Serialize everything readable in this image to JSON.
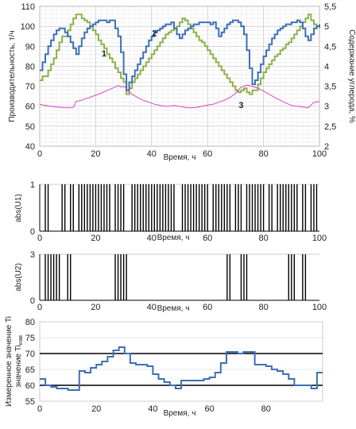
{
  "chart_data": [
    {
      "type": "line",
      "xlabel": "Время, ч",
      "ylabel": "Производительность, т/ч",
      "y2label": "Содержание углерода, %",
      "xlim": [
        0,
        100
      ],
      "ylim": [
        40,
        110
      ],
      "y2lim": [
        2,
        5.5
      ],
      "xticks": [
        "0",
        "20",
        "40",
        "60",
        "80",
        "100"
      ],
      "yticks": [
        "40",
        "50",
        "60",
        "70",
        "80",
        "90",
        "100",
        "110"
      ],
      "y2ticks": [
        "2",
        "2,5",
        "3",
        "3,5",
        "4",
        "4,5",
        "5",
        "5,5"
      ],
      "grid": true,
      "series": [
        {
          "name": "1",
          "axis": "left",
          "color": "#8db04a",
          "x": [
            0,
            1,
            3,
            4,
            5,
            6,
            7,
            8,
            10,
            11,
            12,
            13,
            15,
            16,
            17,
            18,
            19,
            20,
            21,
            22,
            23,
            24,
            25,
            26,
            27,
            28,
            29,
            30,
            31,
            32,
            33,
            34,
            35,
            36,
            37,
            38,
            39,
            40,
            41,
            42,
            43,
            44,
            45,
            46,
            47,
            48,
            49,
            50,
            51,
            52,
            53,
            54,
            55,
            56,
            57,
            58,
            59,
            60,
            61,
            62,
            63,
            64,
            65,
            66,
            67,
            68,
            69,
            70,
            71,
            72,
            73,
            74,
            75,
            76,
            78,
            79,
            80,
            81,
            82,
            83,
            84,
            85,
            86,
            87,
            88,
            89,
            90,
            91,
            92,
            93,
            94,
            95,
            96,
            97,
            98,
            99,
            100
          ],
          "y": [
            73,
            75,
            78,
            81,
            84,
            88,
            92,
            95,
            98,
            101,
            104,
            106,
            104,
            103,
            102,
            100,
            98,
            96,
            93,
            91,
            89,
            86,
            84,
            82,
            79,
            77,
            74,
            72,
            66,
            69,
            72,
            74,
            76,
            78,
            80,
            82,
            84,
            86,
            88,
            90,
            92,
            94,
            96,
            97,
            98,
            99,
            100,
            102,
            104,
            103,
            101,
            99,
            97,
            95,
            93,
            92,
            90,
            88,
            86,
            84,
            82,
            80,
            78,
            76,
            74,
            72,
            70,
            68,
            67,
            68,
            69,
            67,
            66,
            68,
            71,
            74,
            77,
            79,
            81,
            83,
            85,
            86,
            88,
            89,
            91,
            92,
            94,
            96,
            98,
            100,
            102,
            104,
            106,
            103,
            101,
            100,
            99
          ]
        },
        {
          "name": "2",
          "axis": "left",
          "color": "#3d6fb6",
          "x": [
            0,
            1,
            2,
            3,
            4,
            5,
            6,
            7,
            8,
            9,
            10,
            11,
            12,
            13,
            14,
            15,
            16,
            17,
            18,
            19,
            20,
            21,
            22,
            23,
            24,
            25,
            26,
            27,
            28,
            29,
            30,
            31,
            32,
            33,
            34,
            35,
            36,
            37,
            38,
            39,
            40,
            41,
            42,
            43,
            44,
            45,
            46,
            47,
            48,
            49,
            50,
            51,
            52,
            53,
            54,
            55,
            56,
            57,
            58,
            59,
            60,
            61,
            62,
            63,
            64,
            65,
            66,
            67,
            68,
            69,
            70,
            71,
            72,
            73,
            74,
            75,
            76,
            77,
            78,
            79,
            80,
            81,
            82,
            83,
            84,
            85,
            86,
            87,
            88,
            89,
            90,
            91,
            92,
            93,
            94,
            95,
            96,
            97,
            98,
            99,
            100
          ],
          "y": [
            78,
            82,
            86,
            90,
            93,
            96,
            98,
            99,
            99,
            97,
            95,
            92,
            89,
            86,
            90,
            94,
            97,
            99,
            100,
            101,
            102,
            103,
            103,
            103,
            102,
            103,
            103,
            99,
            95,
            87,
            76,
            68,
            72,
            75,
            78,
            81,
            84,
            87,
            90,
            93,
            95,
            97,
            98,
            99,
            100,
            101,
            101,
            102,
            99,
            96,
            94,
            96,
            98,
            99,
            100,
            101,
            101,
            102,
            102,
            102,
            102,
            101,
            102,
            99,
            95,
            97,
            99,
            101,
            102,
            103,
            103,
            102,
            100,
            96,
            88,
            79,
            71,
            73,
            77,
            81,
            85,
            88,
            91,
            94,
            96,
            98,
            99,
            100,
            101,
            101,
            102,
            102,
            103,
            102,
            99,
            95,
            93,
            96,
            99,
            100,
            101
          ]
        },
        {
          "name": "3",
          "axis": "right",
          "color": "#d645c6",
          "x": [
            0,
            2,
            4,
            6,
            8,
            10,
            12,
            13,
            15,
            17,
            19,
            21,
            23,
            25,
            27,
            28,
            29,
            30,
            31,
            32,
            33,
            35,
            37,
            39,
            41,
            43,
            45,
            46,
            48,
            50,
            52,
            54,
            56,
            58,
            60,
            62,
            64,
            66,
            68,
            70,
            72,
            74,
            76,
            78,
            80,
            82,
            84,
            86,
            88,
            90,
            92,
            94,
            96,
            98,
            100
          ],
          "y": [
            3.05,
            3.02,
            3.0,
            2.98,
            2.97,
            2.96,
            2.97,
            3.12,
            3.15,
            3.2,
            3.25,
            3.3,
            3.36,
            3.42,
            3.48,
            3.52,
            3.48,
            3.5,
            3.44,
            3.36,
            3.3,
            3.22,
            3.15,
            3.1,
            3.05,
            3.02,
            3.0,
            3.0,
            3.02,
            3.0,
            2.97,
            2.96,
            2.97,
            3.0,
            3.03,
            3.05,
            3.1,
            3.15,
            3.22,
            3.32,
            3.48,
            3.53,
            3.5,
            3.45,
            3.38,
            3.3,
            3.22,
            3.15,
            3.08,
            3.02,
            3.0,
            2.98,
            2.96,
            3.1,
            3.12
          ]
        }
      ],
      "annotations": [
        {
          "text": "1",
          "x": 23,
          "y": 85
        },
        {
          "text": "2",
          "x": 41,
          "y": 95
        },
        {
          "text": "3",
          "x": 72,
          "y": 59
        }
      ]
    },
    {
      "type": "line",
      "xlabel": "Время, ч",
      "ylabel": "abs(U1)",
      "xlim": [
        0,
        100
      ],
      "ylim": [
        0,
        1
      ],
      "xticks": [
        "0",
        "20",
        "40",
        "60",
        "80",
        "100"
      ],
      "yticks": [
        "0",
        "1"
      ],
      "pulse_x": [
        2,
        3,
        8,
        9,
        11,
        12,
        14,
        15,
        16,
        17,
        18,
        19,
        20,
        21,
        22,
        23,
        24,
        25,
        27,
        28,
        29,
        30,
        33,
        34,
        35,
        36,
        37,
        38,
        39,
        40,
        41,
        42,
        43,
        44,
        45,
        46,
        47,
        48,
        51,
        52,
        53,
        54,
        55,
        56,
        57,
        58,
        59,
        60,
        62,
        63,
        64,
        65,
        66,
        67,
        68,
        70,
        71,
        72,
        74,
        75,
        76,
        77,
        78,
        79,
        80,
        82,
        83,
        85,
        86,
        87,
        88,
        89,
        90,
        91,
        92,
        94,
        95,
        97,
        98,
        99
      ]
    },
    {
      "type": "line",
      "xlabel": "Время, ч",
      "ylabel": "abs(U2)",
      "xlim": [
        0,
        100
      ],
      "ylim": [
        0,
        3
      ],
      "xticks": [
        "0",
        "20",
        "40",
        "60",
        "80",
        "100"
      ],
      "yticks": [
        "0",
        "3"
      ],
      "pulse_x": [
        2,
        3,
        4,
        5,
        6,
        7,
        10,
        11,
        27,
        28,
        29,
        30,
        31,
        67,
        68,
        72,
        73,
        74,
        89,
        90,
        91,
        94,
        95
      ]
    },
    {
      "type": "line",
      "xlabel": "Время, ч",
      "ylabel": "Измеренное значение Ti",
      "ylabel_sub": "изм",
      "xlim": [
        0,
        100
      ],
      "ylim": [
        55,
        80
      ],
      "xticks": [
        "0",
        "20",
        "40",
        "60",
        "80"
      ],
      "yticks": [
        "55",
        "60",
        "65",
        "70",
        "75",
        "80"
      ],
      "hlines": [
        60,
        70
      ],
      "series": [
        {
          "color": "#3d6fb6",
          "x": [
            0,
            2,
            4,
            6,
            8,
            10,
            12,
            14,
            16,
            18,
            20,
            22,
            24,
            26,
            28,
            30,
            32,
            34,
            36,
            38,
            40,
            42,
            44,
            46,
            48,
            50,
            52,
            54,
            56,
            58,
            60,
            62,
            64,
            66,
            68,
            70,
            72,
            74,
            76,
            78,
            80,
            82,
            84,
            86,
            88,
            90,
            92,
            94,
            96,
            98,
            100
          ],
          "y": [
            62,
            60,
            59.5,
            59,
            59,
            58.5,
            58.5,
            64.5,
            64,
            65.5,
            66.5,
            67.5,
            69,
            71,
            72,
            70,
            67,
            66.5,
            66.5,
            66,
            63.5,
            62,
            61,
            60,
            59,
            61.5,
            61.5,
            61.5,
            61.5,
            62,
            62.5,
            64,
            67,
            70.5,
            70.5,
            70,
            70.5,
            70.5,
            66.5,
            66.5,
            66,
            65,
            64.5,
            63.5,
            62,
            60,
            60,
            60,
            59,
            64,
            64
          ]
        }
      ]
    }
  ]
}
